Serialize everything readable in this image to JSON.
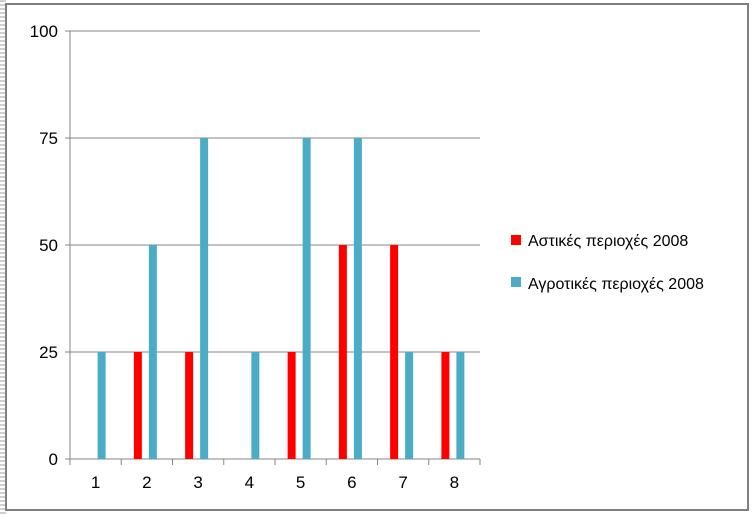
{
  "chart_data": {
    "type": "bar",
    "categories": [
      "1",
      "2",
      "3",
      "4",
      "5",
      "6",
      "7",
      "8"
    ],
    "series": [
      {
        "name": "Αστικές περιοχές 2008",
        "color": "#ff0000",
        "values": [
          0,
          25,
          25,
          0,
          25,
          50,
          50,
          25
        ]
      },
      {
        "name": "Αγροτικές περιοχές 2008",
        "color": "#4bacc6",
        "values": [
          25,
          50,
          75,
          25,
          75,
          75,
          25,
          25
        ]
      }
    ],
    "ylim": [
      0,
      100
    ],
    "yticks": [
      "0",
      "25",
      "50",
      "75",
      "100"
    ],
    "grid": true,
    "legend_position": "right"
  }
}
